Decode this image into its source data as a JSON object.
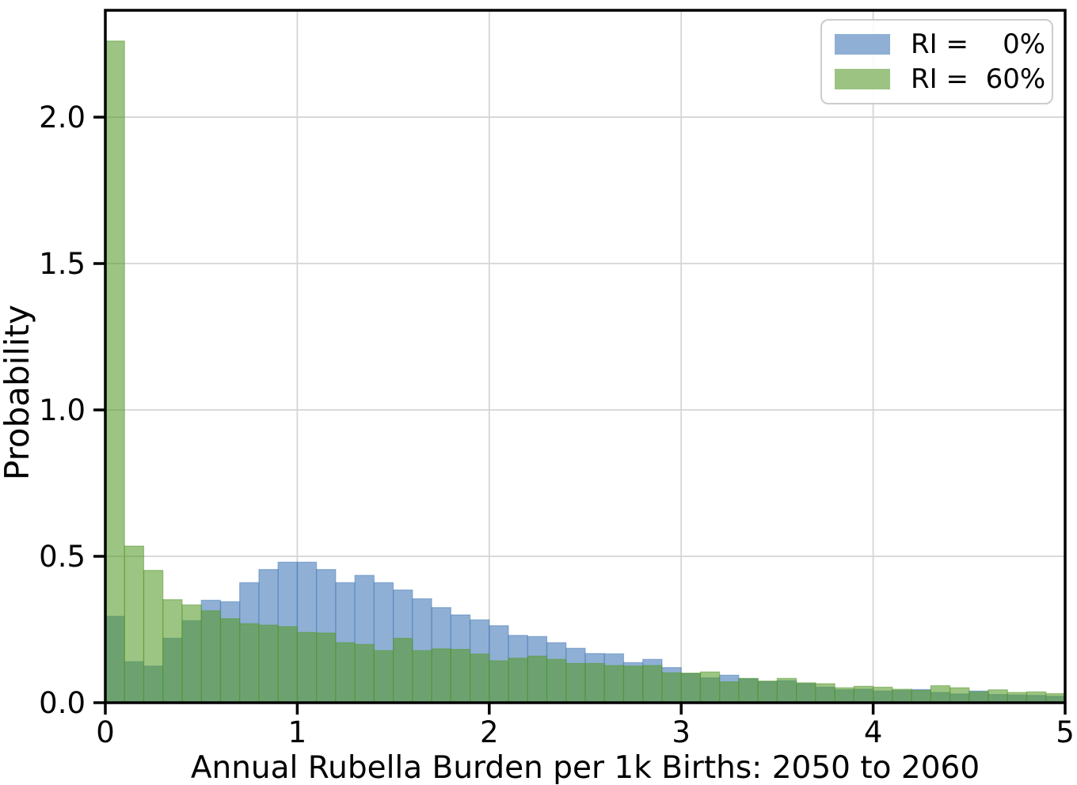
{
  "figure": {
    "background_color": "#ffffff",
    "grid_color": "#d5d5d5",
    "spine_color": "#000000"
  },
  "chart_data": {
    "type": "bar",
    "subtype": "overlaid-histograms",
    "title": "",
    "x_label": "Annual Rubella Burden per 1k Births: 2050 to 2060",
    "y_label": "Probability",
    "x_range": [
      0,
      5
    ],
    "y_range": [
      0,
      2.365
    ],
    "x_ticks": [
      0,
      1,
      2,
      3,
      4,
      5
    ],
    "x_tick_labels": [
      "0",
      "1",
      "2",
      "3",
      "4",
      "5"
    ],
    "y_ticks": [
      0.0,
      0.5,
      1.0,
      1.5,
      2.0
    ],
    "y_tick_labels": [
      "0.0",
      "0.5",
      "1.0",
      "1.5",
      "2.0"
    ],
    "grid": true,
    "legend_position": "upper right",
    "bins": {
      "start": 0,
      "width": 0.1,
      "count": 50
    },
    "series": [
      {
        "name": "RI =    0%",
        "short_name": "RI = 0%",
        "color": "#4A7EBA",
        "alpha": 0.62,
        "swatch": "#8FAFD4",
        "values": [
          0.295,
          0.14,
          0.125,
          0.22,
          0.28,
          0.35,
          0.345,
          0.41,
          0.455,
          0.48,
          0.48,
          0.455,
          0.41,
          0.435,
          0.41,
          0.385,
          0.355,
          0.325,
          0.3,
          0.283,
          0.263,
          0.23,
          0.226,
          0.205,
          0.186,
          0.168,
          0.167,
          0.137,
          0.148,
          0.12,
          0.1,
          0.085,
          0.094,
          0.082,
          0.072,
          0.075,
          0.065,
          0.053,
          0.044,
          0.046,
          0.04,
          0.042,
          0.045,
          0.035,
          0.03,
          0.04,
          0.028,
          0.026,
          0.025,
          0.022
        ]
      },
      {
        "name": "RI =  60%",
        "short_name": "RI = 60%",
        "color": "#559928",
        "alpha": 0.58,
        "swatch": "#9CC382",
        "values": [
          2.26,
          0.535,
          0.452,
          0.352,
          0.334,
          0.314,
          0.287,
          0.27,
          0.265,
          0.26,
          0.24,
          0.238,
          0.205,
          0.199,
          0.178,
          0.22,
          0.178,
          0.184,
          0.182,
          0.166,
          0.143,
          0.152,
          0.159,
          0.148,
          0.134,
          0.134,
          0.127,
          0.125,
          0.127,
          0.102,
          0.101,
          0.105,
          0.071,
          0.083,
          0.074,
          0.083,
          0.068,
          0.065,
          0.051,
          0.056,
          0.053,
          0.046,
          0.042,
          0.058,
          0.051,
          0.037,
          0.044,
          0.035,
          0.037,
          0.031
        ]
      }
    ]
  }
}
